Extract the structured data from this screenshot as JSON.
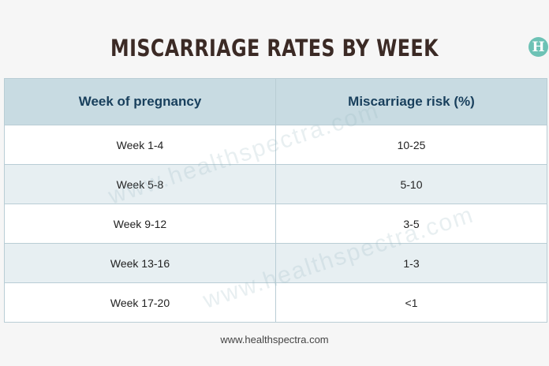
{
  "title": "MISCARRIAGE RATES BY WEEK",
  "logo_letter": "H",
  "table": {
    "headers": [
      "Week of pregnancy",
      "Miscarriage risk (%)"
    ],
    "rows": [
      [
        "Week 1-4",
        "10-25"
      ],
      [
        "Week 5-8",
        "5-10"
      ],
      [
        "Week 9-12",
        "3-5"
      ],
      [
        "Week 13-16",
        "1-3"
      ],
      [
        "Week 17-20",
        "<1"
      ]
    ]
  },
  "watermark": "www.healthspectra.com",
  "footer": "www.healthspectra.com",
  "colors": {
    "header_bg": "#c8dbe2",
    "header_text": "#183f5c",
    "title_text": "#3b2a25",
    "logo_bg": "#6dc2b5",
    "alt_row_bg": "#e7eff2"
  }
}
